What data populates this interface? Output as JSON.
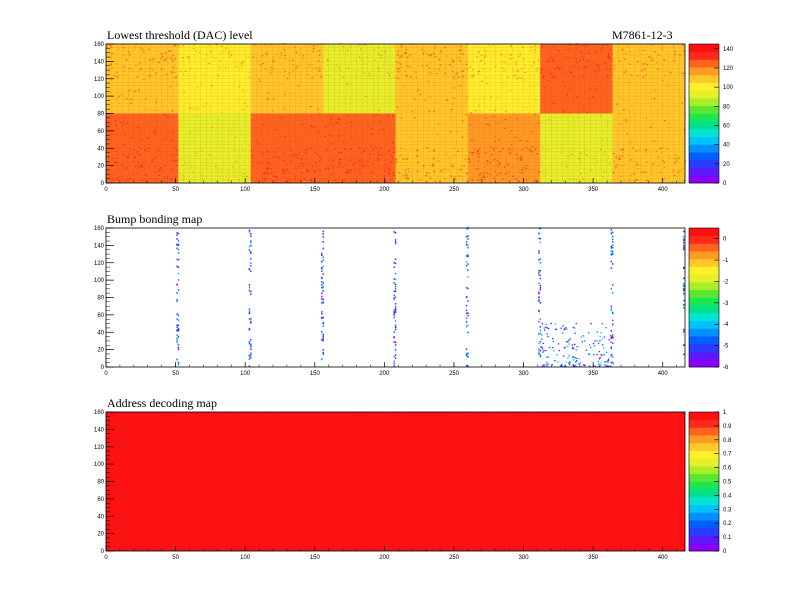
{
  "module_id": "M7861-12-3",
  "colors": {
    "palette": [
      "#8a00ff",
      "#5a1cff",
      "#2a3cff",
      "#005eff",
      "#0090ff",
      "#00c2ff",
      "#00e6d2",
      "#00e08c",
      "#1ee650",
      "#5ae632",
      "#aaee28",
      "#e6f028",
      "#fff02a",
      "#ffc828",
      "#ff9a22",
      "#ff641e",
      "#ff2a1a",
      "#ff1010"
    ],
    "grid": "#c04040"
  },
  "chart_data": [
    {
      "type": "heatmap",
      "title": "Lowest threshold (DAC) level",
      "x_range": [
        0,
        416
      ],
      "y_range": [
        0,
        160
      ],
      "x_ticks": [
        "0",
        "50",
        "100",
        "150",
        "200",
        "250",
        "300",
        "350",
        "400"
      ],
      "y_ticks": [
        "0",
        "20",
        "40",
        "60",
        "80",
        "100",
        "120",
        "140",
        "160"
      ],
      "z_range": [
        0,
        145
      ],
      "z_ticks": [
        "0",
        "20",
        "40",
        "60",
        "80",
        "100",
        "120",
        "140"
      ],
      "chip_levels": {
        "top": [
          110,
          98,
          105,
          95,
          112,
          100,
          125,
          106
        ],
        "bottom": [
          125,
          90,
          125,
          125,
          108,
          120,
          92,
          106
        ]
      },
      "chips_per_row": 8,
      "chip_columns": 52,
      "chip_rows": 80
    },
    {
      "type": "heatmap",
      "title": "Bump bonding map",
      "x_range": [
        0,
        416
      ],
      "y_range": [
        0,
        160
      ],
      "x_ticks": [
        "0",
        "50",
        "100",
        "150",
        "200",
        "250",
        "300",
        "350",
        "400"
      ],
      "y_ticks": [
        "0",
        "20",
        "40",
        "60",
        "80",
        "100",
        "120",
        "140",
        "160"
      ],
      "z_range": [
        -6,
        0.5
      ],
      "z_ticks": [
        "-6",
        "-5",
        "-4",
        "-3",
        "-2",
        "-1",
        "0"
      ],
      "bad_columns": [
        51,
        52,
        103,
        104,
        155,
        156,
        207,
        208,
        259,
        260,
        311,
        312,
        363,
        364,
        415
      ],
      "cluster_region": {
        "x": [
          312,
          364
        ],
        "y": [
          0,
          50
        ]
      }
    },
    {
      "type": "heatmap",
      "title": "Address decoding map",
      "x_range": [
        0,
        416
      ],
      "y_range": [
        0,
        160
      ],
      "x_ticks": [
        "0",
        "50",
        "100",
        "150",
        "200",
        "250",
        "300",
        "350",
        "400"
      ],
      "y_ticks": [
        "0",
        "20",
        "40",
        "60",
        "80",
        "100",
        "120",
        "140",
        "160"
      ],
      "z_range": [
        0,
        1
      ],
      "z_ticks": [
        "0",
        "0.1",
        "0.2",
        "0.3",
        "0.4",
        "0.5",
        "0.6",
        "0.7",
        "0.8",
        "0.9",
        "1"
      ],
      "uniform_value": 1
    }
  ]
}
